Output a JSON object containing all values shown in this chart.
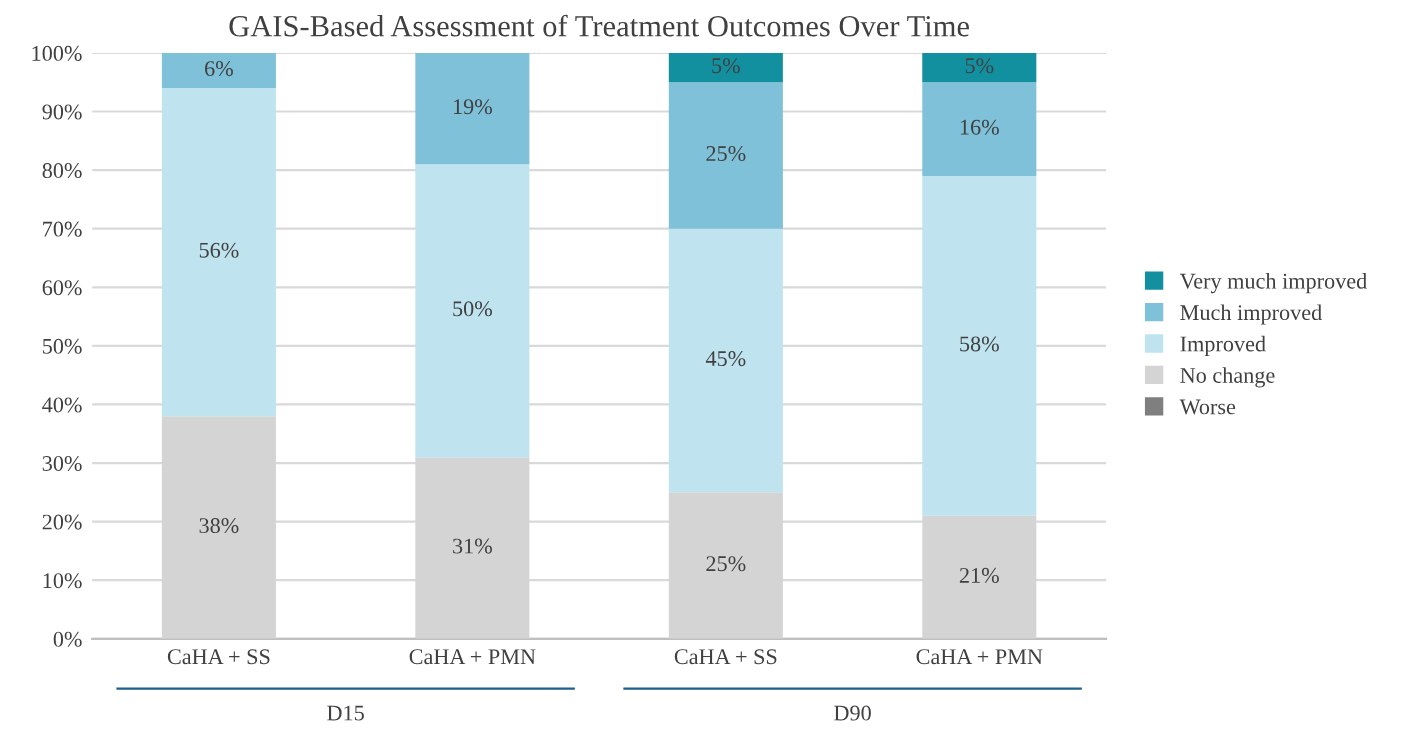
{
  "chart_data": {
    "type": "bar",
    "title": "GAIS-Based Assessment of Treatment Outcomes Over Time",
    "stacked": true,
    "categories": [
      "CaHA + SS",
      "CaHA + PMN",
      "CaHA + SS",
      "CaHA + PMN"
    ],
    "series": [
      {
        "name": "Worse",
        "color": "#7f7f7f",
        "values": [
          0,
          0,
          0,
          0
        ],
        "value_labels": [
          null,
          null,
          null,
          null
        ]
      },
      {
        "name": "No change",
        "color": "#d4d4d4",
        "values": [
          38,
          31,
          25,
          21
        ],
        "value_labels": [
          "38%",
          "31%",
          "25%",
          "21%"
        ]
      },
      {
        "name": "Improved",
        "color": "#bfe3ef",
        "values": [
          56,
          50,
          45,
          58
        ],
        "value_labels": [
          "56%",
          "50%",
          "45%",
          "58%"
        ]
      },
      {
        "name": "Much improved",
        "color": "#7fc1d9",
        "values": [
          6,
          19,
          25,
          16
        ],
        "value_labels": [
          "6%",
          "19%",
          "25%",
          "16%"
        ]
      },
      {
        "name": "Very much improved",
        "color": "#13909f",
        "values": [
          0,
          0,
          5,
          5
        ],
        "value_labels": [
          null,
          null,
          "5%",
          "5%"
        ]
      }
    ],
    "annotations": [
      "D15",
      "D90"
    ],
    "ylim": [
      0,
      100
    ],
    "yticks": [
      {
        "value": 0,
        "label": "0%"
      },
      {
        "value": 10,
        "label": "10%"
      },
      {
        "value": 20,
        "label": "20%"
      },
      {
        "value": 30,
        "label": "30%"
      },
      {
        "value": 40,
        "label": "40%"
      },
      {
        "value": 50,
        "label": "50%"
      },
      {
        "value": 60,
        "label": "60%"
      },
      {
        "value": 70,
        "label": "70%"
      },
      {
        "value": 80,
        "label": "80%"
      },
      {
        "value": 90,
        "label": "90%"
      },
      {
        "value": 100,
        "label": "100%"
      }
    ],
    "grid": "y",
    "legend": "right"
  }
}
